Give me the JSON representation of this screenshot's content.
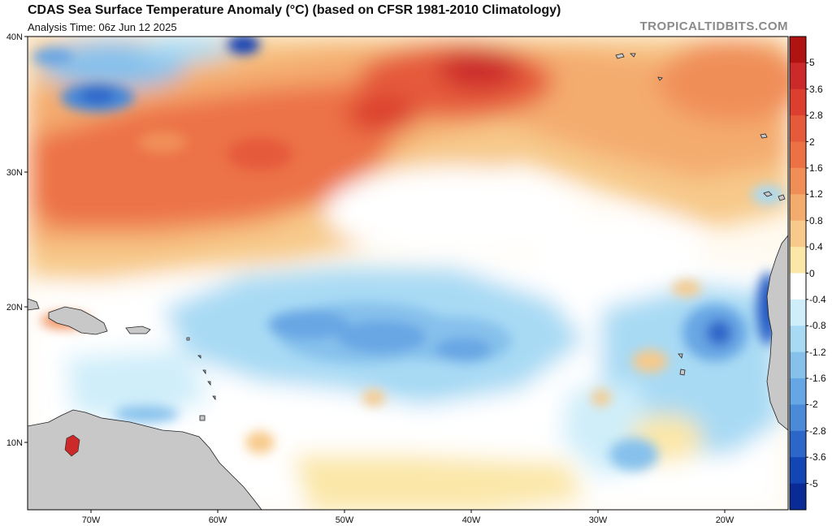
{
  "header": {
    "title": "CDAS Sea Surface Temperature Anomaly (°C) (based on CFSR 1981-2010 Climatology)",
    "subtitle": "Analysis Time: 06z Jun 12 2025",
    "watermark": "TROPICALTIDBITS.COM"
  },
  "map": {
    "lat_labels": [
      "40N",
      "30N",
      "20N",
      "10N"
    ],
    "lon_labels": [
      "70W",
      "60W",
      "50W",
      "40W",
      "30W",
      "20W"
    ],
    "land_color": "#c8c8c8"
  },
  "colorbar": {
    "labels": [
      "5",
      "3.6",
      "2.8",
      "2",
      "1.6",
      "1.2",
      "0.8",
      "0.4",
      "0",
      "-0.4",
      "-0.8",
      "-1.2",
      "-1.6",
      "-2",
      "-2.8",
      "-3.6",
      "-5"
    ],
    "colors": [
      "#b11212",
      "#cc2a2a",
      "#dc3f2f",
      "#e55a3a",
      "#ec7246",
      "#f08e58",
      "#f4ab6e",
      "#f7c98a",
      "#fbe7a8",
      "#ffffff",
      "#cfeefa",
      "#a8daf4",
      "#86c1ec",
      "#67a6e4",
      "#4a8ad8",
      "#2d66c9",
      "#1445b5",
      "#0a2a95"
    ]
  }
}
